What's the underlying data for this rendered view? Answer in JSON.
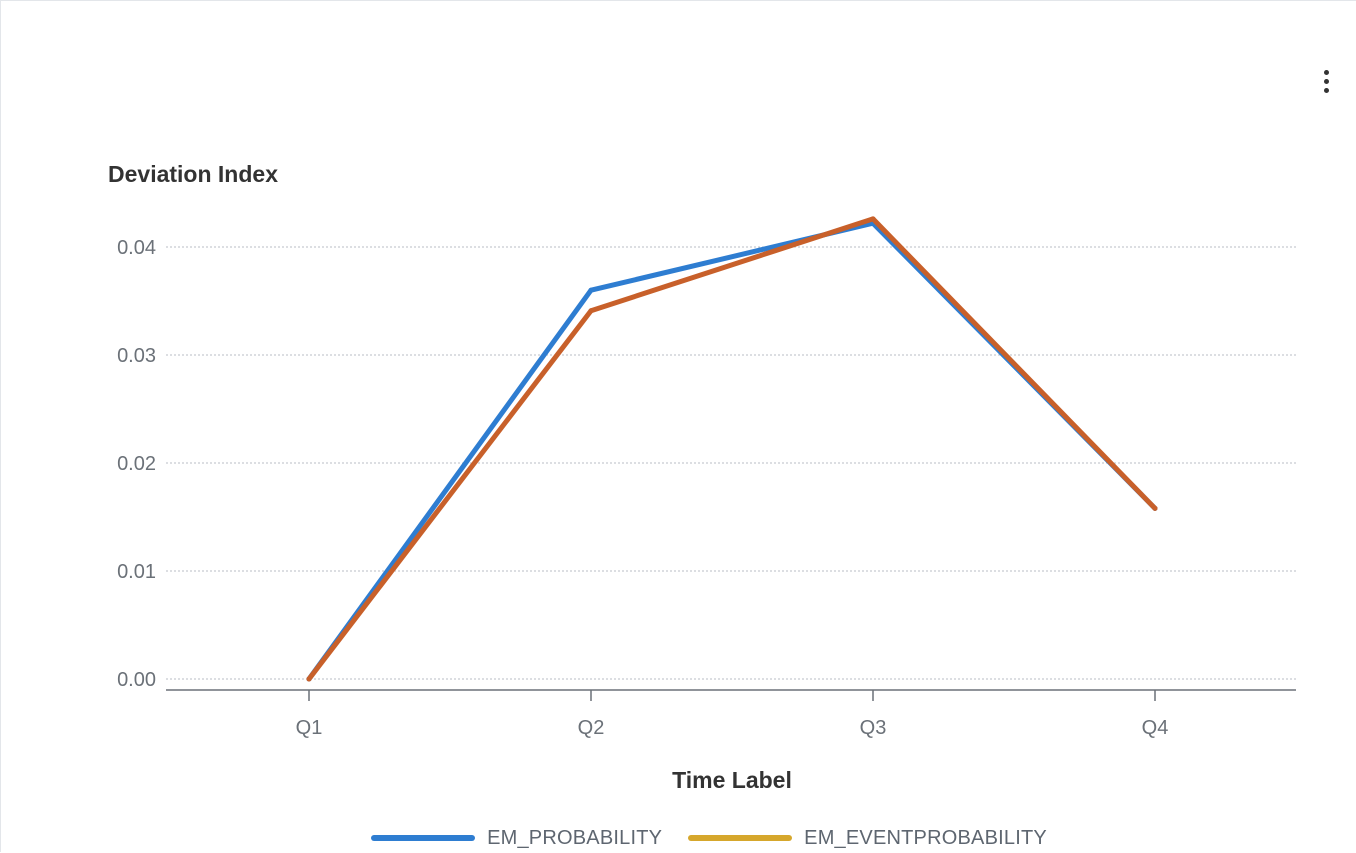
{
  "menu": {
    "icon": "more-vertical-icon"
  },
  "chart_data": {
    "type": "line",
    "title": "",
    "ylabel": "Deviation Index",
    "xlabel": "Time Label",
    "categories": [
      "Q1",
      "Q2",
      "Q3",
      "Q4"
    ],
    "ylim": [
      0,
      0.042
    ],
    "yticks": [
      "0.00",
      "0.01",
      "0.02",
      "0.03",
      "0.04"
    ],
    "grid": true,
    "legend_position": "bottom",
    "series": [
      {
        "name": "EM_PROBABILITY",
        "values": [
          0.0,
          0.036,
          0.0422,
          0.0158
        ],
        "color": "#2e7dd1",
        "legend_color": "#2e7dd1"
      },
      {
        "name": "EM_EVENTPROBABILITY",
        "values": [
          0.0,
          0.0341,
          0.0426,
          0.0158
        ],
        "color": "#c8602a",
        "legend_color": "#d6a72c"
      }
    ]
  }
}
